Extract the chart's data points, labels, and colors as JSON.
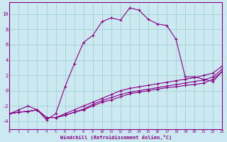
{
  "xlabel": "Windchill (Refroidissement éolien,°C)",
  "bg_color": "#cce8f0",
  "line_color": "#880088",
  "grid_color": "#99cccc",
  "xlim": [
    0,
    23
  ],
  "ylim": [
    -5,
    11.5
  ],
  "yticks": [
    -4,
    -2,
    0,
    2,
    4,
    6,
    8,
    10
  ],
  "xticks": [
    0,
    1,
    2,
    3,
    4,
    5,
    6,
    7,
    8,
    9,
    10,
    11,
    12,
    13,
    14,
    15,
    16,
    17,
    18,
    19,
    20,
    21,
    22,
    23
  ],
  "curve_main_x": [
    0,
    1,
    2,
    3,
    4,
    5,
    6,
    7,
    8,
    9,
    10,
    11,
    12,
    13,
    14,
    15,
    16,
    17,
    18,
    19,
    20,
    21,
    22,
    23
  ],
  "curve_main_y": [
    -3.0,
    -2.5,
    -2.0,
    -2.5,
    -3.8,
    -3.0,
    0.5,
    3.5,
    6.3,
    7.2,
    9.0,
    9.5,
    9.2,
    10.8,
    10.5,
    9.3,
    8.7,
    8.5,
    6.7,
    1.8,
    1.8,
    1.5,
    1.2,
    2.5
  ],
  "curve_a_x": [
    0,
    1,
    2,
    3,
    4,
    5,
    6,
    7,
    8,
    9,
    10,
    11,
    12,
    13,
    14,
    15,
    16,
    17,
    18,
    19,
    20,
    21,
    22,
    23
  ],
  "curve_a_y": [
    -3.0,
    -2.8,
    -2.7,
    -2.5,
    -3.5,
    -3.5,
    -3.2,
    -2.8,
    -2.5,
    -2.0,
    -1.5,
    -1.2,
    -0.8,
    -0.4,
    -0.2,
    0.0,
    0.2,
    0.4,
    0.5,
    0.7,
    0.8,
    1.0,
    1.5,
    2.5
  ],
  "curve_b_x": [
    0,
    1,
    2,
    3,
    4,
    5,
    6,
    7,
    8,
    9,
    10,
    11,
    12,
    13,
    14,
    15,
    16,
    17,
    18,
    19,
    20,
    21,
    22,
    23
  ],
  "curve_b_y": [
    -3.0,
    -2.8,
    -2.7,
    -2.5,
    -3.5,
    -3.5,
    -3.2,
    -2.8,
    -2.4,
    -1.8,
    -1.3,
    -0.9,
    -0.5,
    -0.2,
    0.0,
    0.2,
    0.4,
    0.6,
    0.8,
    1.0,
    1.2,
    1.4,
    1.8,
    2.8
  ],
  "curve_c_x": [
    0,
    1,
    2,
    3,
    4,
    5,
    6,
    7,
    8,
    9,
    10,
    11,
    12,
    13,
    14,
    15,
    16,
    17,
    18,
    19,
    20,
    21,
    22,
    23
  ],
  "curve_c_y": [
    -3.0,
    -2.8,
    -2.7,
    -2.5,
    -3.5,
    -3.5,
    -3.0,
    -2.5,
    -2.0,
    -1.5,
    -1.0,
    -0.5,
    0.0,
    0.3,
    0.5,
    0.7,
    0.9,
    1.1,
    1.3,
    1.5,
    1.7,
    2.0,
    2.3,
    3.2
  ]
}
